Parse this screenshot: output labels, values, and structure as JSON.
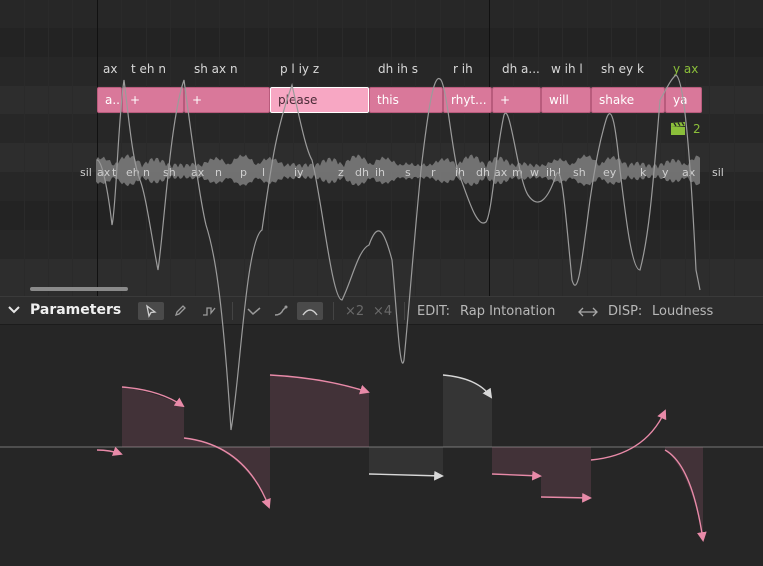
{
  "colors": {
    "note": "#d9789a",
    "note_selected": "#f7a7c3",
    "accent_green": "#8bbf3a",
    "curve": "#e88aa8"
  },
  "phonemes": [
    {
      "text": "ax"
    },
    {
      "text": "t eh n"
    },
    {
      "text": "sh ax n"
    },
    {
      "text": "p l iy z"
    },
    {
      "text": "dh ih s"
    },
    {
      "text": "r ih"
    },
    {
      "text": "dh a..."
    },
    {
      "text": "w ih l"
    },
    {
      "text": "sh ey k"
    },
    {
      "text": "y ax"
    }
  ],
  "notes": [
    {
      "lyric": "a..."
    },
    {
      "lyric": "+"
    },
    {
      "lyric": "+"
    },
    {
      "lyric": "please"
    },
    {
      "lyric": "this"
    },
    {
      "lyric": "rhyt..."
    },
    {
      "lyric": "+"
    },
    {
      "lyric": "will"
    },
    {
      "lyric": "shake"
    },
    {
      "lyric": "ya"
    }
  ],
  "take_badge": {
    "icon": "clapperboard-icon",
    "count": "2"
  },
  "sub_phonemes": [
    "sil",
    "ax",
    "t",
    "eh",
    "n",
    "sh",
    "ax",
    "n",
    "p",
    "l",
    "iy",
    "z",
    "dh",
    "ih",
    "s",
    "r",
    "ih",
    "dh",
    "ax",
    "m",
    "w",
    "ih",
    "l",
    "sh",
    "ey",
    "k",
    "y",
    "ax",
    "sil"
  ],
  "parameters": {
    "title": "Parameters",
    "tools": [
      "pointer-tool-icon",
      "pen-tool-icon",
      "line-tool-icon",
      "vibrato-down-icon",
      "curve-up-icon",
      "curve-arc-icon"
    ],
    "x2": "×2",
    "x4": "×4",
    "edit_label": "EDIT:",
    "edit_value": "Rap Intonation",
    "swap_icon": "swap-arrows-icon",
    "disp_label": "DISP:",
    "disp_value": "Loudness"
  }
}
